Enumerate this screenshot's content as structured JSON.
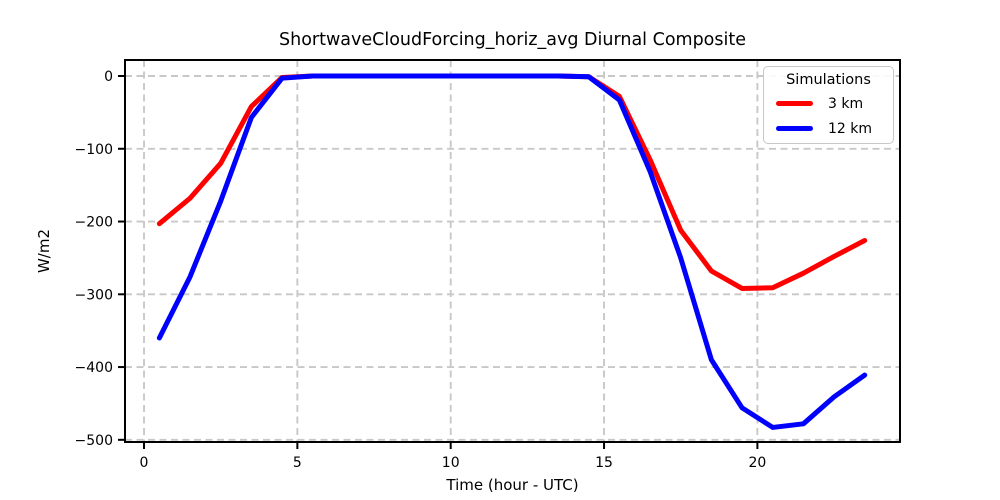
{
  "figure": {
    "title": "ShortwaveCloudForcing_horiz_avg Diurnal Composite",
    "xlabel": "Time (hour - UTC)",
    "ylabel": "W/m2"
  },
  "legend": {
    "title": "Simulations",
    "entries": [
      {
        "label": "3 km",
        "color": "#ff0000"
      },
      {
        "label": "12 km",
        "color": "#0000ff"
      }
    ]
  },
  "chart_data": {
    "type": "line",
    "title": "ShortwaveCloudForcing_horiz_avg Diurnal Composite",
    "xlabel": "Time (hour - UTC)",
    "ylabel": "W/m2",
    "x": [
      0.5,
      1.5,
      2.5,
      3.5,
      4.5,
      5.5,
      6.5,
      7.5,
      8.5,
      9.5,
      10.5,
      11.5,
      12.5,
      13.5,
      14.5,
      15.5,
      16.5,
      17.5,
      18.5,
      19.5,
      20.5,
      21.5,
      22.5,
      23.5
    ],
    "series": [
      {
        "name": "3 km",
        "color": "#ff0000",
        "values": [
          -203,
          -168,
          -120,
          -42,
          -2,
          0,
          0,
          0,
          0,
          0,
          0,
          0,
          0,
          0,
          -1,
          -28,
          -115,
          -212,
          -268,
          -292,
          -291,
          -271,
          -248,
          -226
        ]
      },
      {
        "name": "12 km",
        "color": "#0000ff",
        "values": [
          -360,
          -276,
          -172,
          -57,
          -3,
          0,
          0,
          0,
          0,
          0,
          0,
          0,
          0,
          0,
          -1,
          -33,
          -131,
          -250,
          -390,
          -456,
          -483,
          -478,
          -441,
          -411
        ]
      }
    ],
    "xlim": [
      -0.62,
      24.65
    ],
    "ylim": [
      -503,
      22
    ],
    "x_ticks": {
      "values": [
        0,
        5,
        10,
        15,
        20
      ],
      "labels": [
        "0",
        "5",
        "10",
        "15",
        "20"
      ]
    },
    "y_ticks": {
      "values": [
        0,
        -100,
        -200,
        -300,
        -400,
        -500
      ],
      "labels": [
        "0",
        "−100",
        "−200",
        "−300",
        "−400",
        "−500"
      ]
    },
    "grid": true,
    "grid_color": "#c8c8c8",
    "grid_dash": "7 4.5",
    "spine_color": "#000000",
    "line_width": 5,
    "legend_position": "upper right"
  }
}
